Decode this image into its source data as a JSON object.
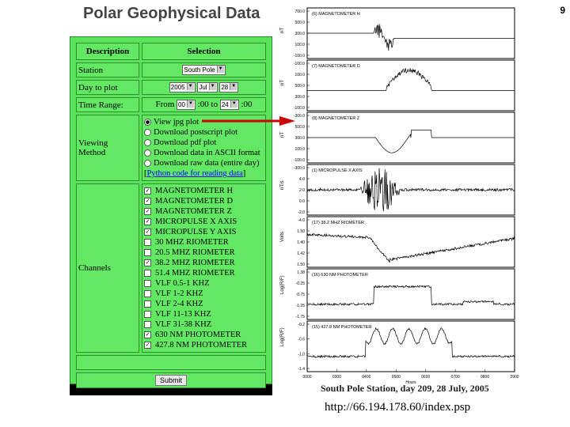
{
  "page_number": "9",
  "title": "Polar Geophysical Data",
  "form": {
    "header_description": "Description",
    "header_selection": "Selection",
    "station_label": "Station",
    "station_value": "South Pole",
    "day_label": "Day to plot",
    "day_year": "2005",
    "day_month": "Jul",
    "day_day": "28",
    "time_label": "Time Range:",
    "time_from_label": "From",
    "time_from": "00",
    "time_sep1": ":00 to",
    "time_to": "24",
    "time_sep2": ":00",
    "viewing_label": "Viewing Method",
    "viewing_options": [
      {
        "label": "View jpg plot",
        "selected": true
      },
      {
        "label": "Download postscript plot",
        "selected": false
      },
      {
        "label": "Download pdf plot",
        "selected": false
      },
      {
        "label": "Download data in ASCII format",
        "selected": false
      },
      {
        "label": "Download raw data (entire day)",
        "selected": false
      }
    ],
    "python_link": "Python code for reading data",
    "channels_label": "Channels",
    "channels": [
      {
        "label": "MAGNETOMETER H",
        "checked": true
      },
      {
        "label": "MAGNETOMETER D",
        "checked": true
      },
      {
        "label": "MAGNETOMETER Z",
        "checked": true
      },
      {
        "label": "MICROPULSE X AXIS",
        "checked": true
      },
      {
        "label": "MICROPULSE Y AXIS",
        "checked": true
      },
      {
        "label": "30 MHZ RIOMETER",
        "checked": false
      },
      {
        "label": "20.5 MHZ RIOMETER",
        "checked": false
      },
      {
        "label": "38.2 MHZ RIOMETER",
        "checked": true
      },
      {
        "label": "51.4 MHZ RIOMETER",
        "checked": false
      },
      {
        "label": "VLF 0.5-1 KHZ",
        "checked": false
      },
      {
        "label": "VLF 1-2 KHZ",
        "checked": false
      },
      {
        "label": "VLF 2-4 KHZ",
        "checked": false
      },
      {
        "label": "VLF 11-13 KHZ",
        "checked": false
      },
      {
        "label": "VLF 31-38 KHZ",
        "checked": false
      },
      {
        "label": "630 NM PHOTOMETER",
        "checked": true
      },
      {
        "label": "427.8 NM PHOTOMETER",
        "checked": true
      }
    ],
    "submit_label": "Submit"
  },
  "plot": {
    "panels": [
      {
        "name": "(6)  MAGNETOMETER H",
        "unit": "nT",
        "ticks": [
          "700.0",
          "500.0",
          "300.0",
          "100.0",
          "-100.0"
        ]
      },
      {
        "name": "(7)  MAGNETOMETER D",
        "unit": "nT",
        "ticks": [
          "-100.0",
          "100.0",
          "500.0",
          "300.0",
          "-100.0"
        ]
      },
      {
        "name": "(8)  MAGNETOMETER Z",
        "unit": "nT",
        "ticks": [
          "-300.0",
          "500.0",
          "300.0",
          "100.0",
          "-100.0"
        ]
      },
      {
        "name": "(1)  MICROPULSE X AXIS",
        "unit": "nT/s",
        "ticks": [
          "-300.0",
          "4.0",
          "2.0",
          "0.0",
          "-2.0"
        ]
      },
      {
        "name": "(17)  38.2 MHZ RIOMETER",
        "unit": "Volts",
        "ticks": [
          "-4.0",
          "1.50",
          "1.40",
          "1.42",
          "1.50"
        ]
      },
      {
        "name": "(16)  630 NM PHOTOMETER",
        "unit": "Log(R/F)",
        "ticks": [
          "1.38",
          "-0.25",
          "-0.75",
          "-1.25",
          "-1.75"
        ]
      },
      {
        "name": "(15)  427.8 NM PHOTOMETER",
        "unit": "Log(R/F)",
        "ticks": [
          "-0.2",
          "-0.6",
          "-1.0",
          "-1.4"
        ]
      }
    ],
    "x_ticks": [
      "0000",
      "0300",
      "0400",
      "0500",
      "0600",
      "0700",
      "0800",
      "0900"
    ],
    "x_label": "Hours",
    "caption": "South Pole Station, day 209, 28 July, 2005"
  },
  "url": "http://66.194.178.60/index.psp",
  "colors": {
    "form_bg": "#5be35b",
    "arrow": "#cc0000",
    "link": "#0000ff"
  }
}
